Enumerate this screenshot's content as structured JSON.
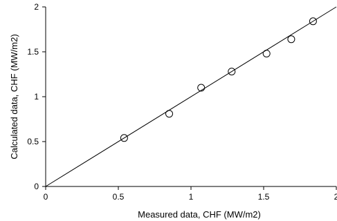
{
  "chart_data": {
    "type": "scatter",
    "title": "",
    "xlabel": "Measured data, CHF (MW/m2)",
    "ylabel": "Calculated data, CHF (MW/m2)",
    "xlim": [
      0,
      2
    ],
    "ylim": [
      0,
      2
    ],
    "x_ticks": [
      "0",
      "0.5",
      "1",
      "1.5",
      "2"
    ],
    "y_ticks": [
      "0",
      "0.5",
      "1",
      "1.5",
      "2"
    ],
    "grid": false,
    "legend": "none",
    "marker": "open-circle",
    "reference_line": {
      "x": [
        0,
        2
      ],
      "y": [
        0,
        2
      ]
    },
    "series": [
      {
        "x": [
          0.54,
          0.85,
          1.07,
          1.28,
          1.52,
          1.69,
          1.84
        ],
        "y": [
          0.54,
          0.81,
          1.1,
          1.28,
          1.48,
          1.64,
          1.84
        ]
      }
    ],
    "colors": {
      "marker": "#000000",
      "line": "#000000",
      "axis": "#000000"
    }
  }
}
